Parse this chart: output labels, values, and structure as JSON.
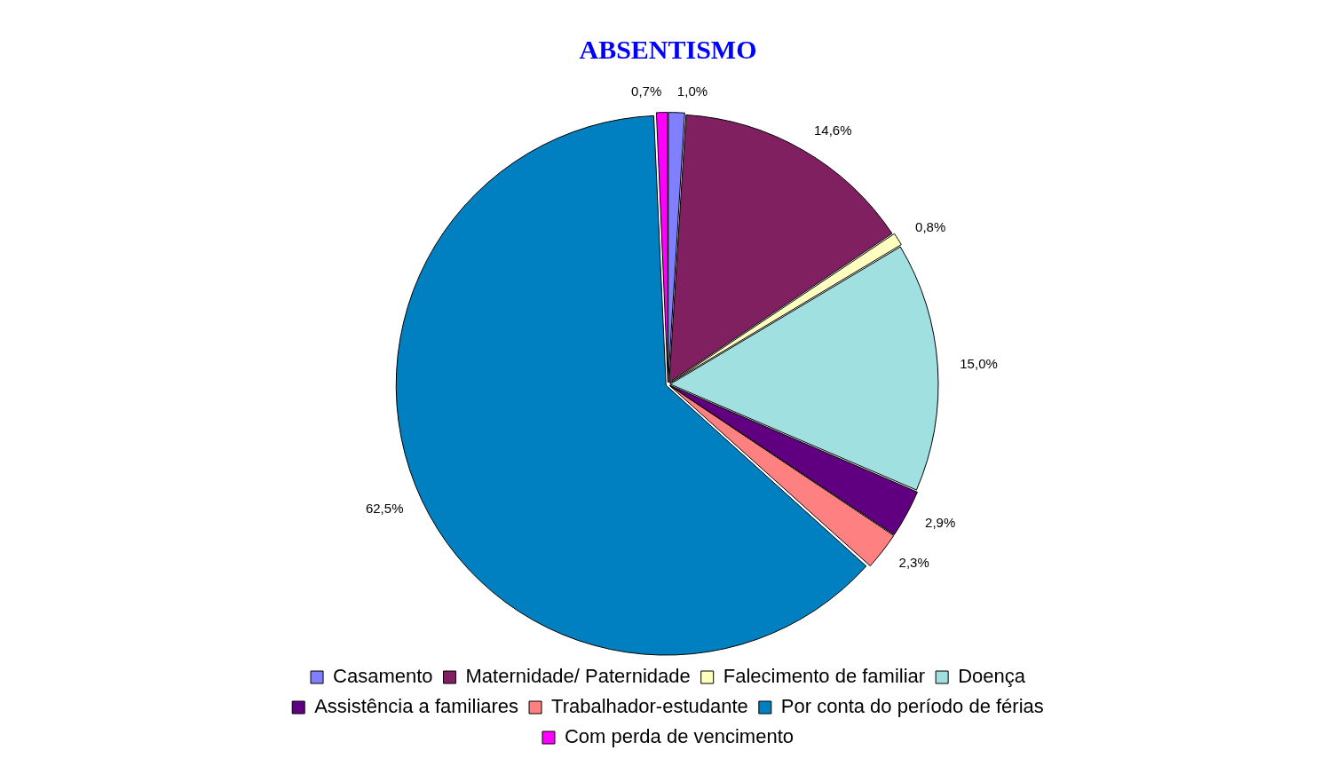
{
  "chart_data": {
    "type": "pie",
    "title": "ABSENTISMO",
    "categories": [
      "Casamento",
      "Maternidade/ Paternidade",
      "Falecimento de familiar",
      "Doença",
      "Assistência a familiares",
      "Trabalhador-estudante",
      "Por conta do período de férias",
      "Com perda de vencimento"
    ],
    "values": [
      1.0,
      14.6,
      0.8,
      15.0,
      2.9,
      2.3,
      62.5,
      0.7
    ],
    "colors": [
      "#8080ff",
      "#802060",
      "#ffffc0",
      "#a0e0e0",
      "#600080",
      "#ff8080",
      "#0080c0",
      "#ff00ff"
    ],
    "value_labels": [
      "1,0%",
      "14,6%",
      "0,8%",
      "15,0%",
      "2,9%",
      "2,3%",
      "62,5%",
      "0,7%"
    ],
    "legend": "bottom"
  }
}
